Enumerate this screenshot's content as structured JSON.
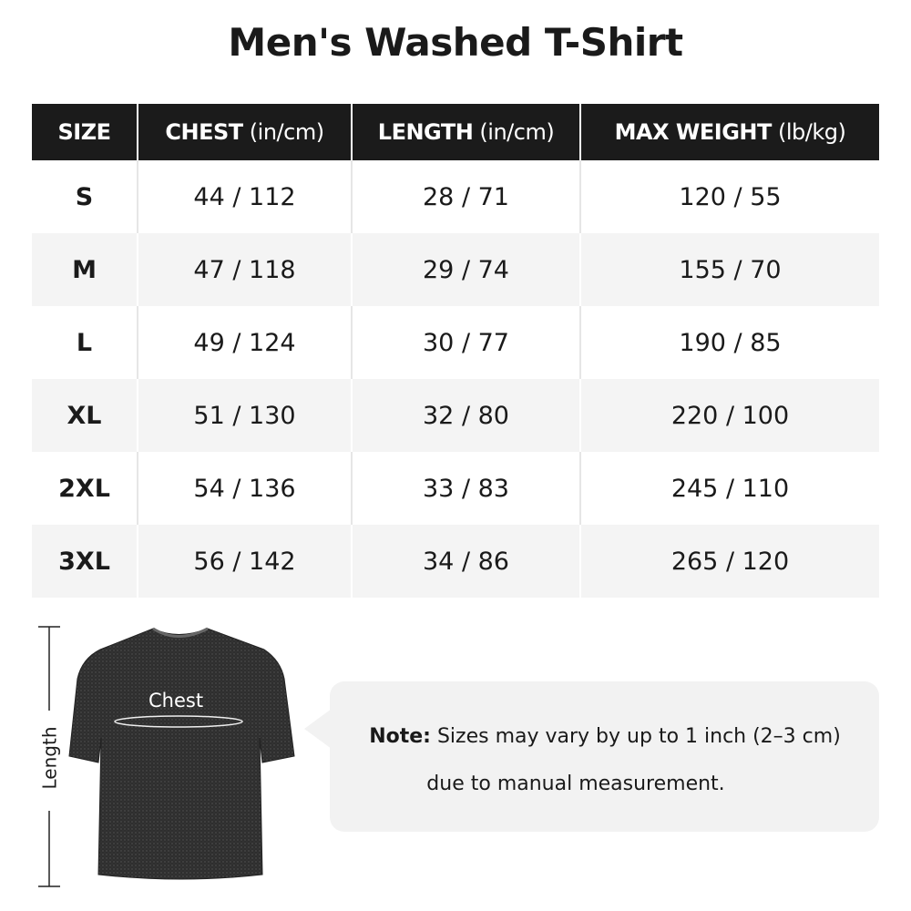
{
  "title": "Men's Washed T-Shirt",
  "table": {
    "headers": [
      {
        "label": "SIZE",
        "unit": ""
      },
      {
        "label": "CHEST",
        "unit": " (in/cm)"
      },
      {
        "label": "LENGTH",
        "unit": " (in/cm)"
      },
      {
        "label": "MAX WEIGHT",
        "unit": " (lb/kg)"
      }
    ],
    "rows": [
      [
        "S",
        "44 / 112",
        "28 / 71",
        "120 / 55"
      ],
      [
        "M",
        "47 / 118",
        "29 / 74",
        "155 / 70"
      ],
      [
        "L",
        "49 / 124",
        "30 / 77",
        "190 / 85"
      ],
      [
        "XL",
        "51 / 130",
        "32 / 80",
        "220 / 100"
      ],
      [
        "2XL",
        "54 / 136",
        "33 / 83",
        "245 / 110"
      ],
      [
        "3XL",
        "56 / 142",
        "34 / 86",
        "265 / 120"
      ]
    ]
  },
  "diagram": {
    "chest_label": "Chest",
    "length_label": "Length"
  },
  "note": {
    "label": "Note:",
    "line1": " Sizes may vary by up to 1 inch (2–3 cm)",
    "line2": "due to manual measurement."
  },
  "colors": {
    "header_bg": "#1b1b1b",
    "row_alt": "#f4f4f4",
    "note_bg": "#f2f2f2"
  }
}
